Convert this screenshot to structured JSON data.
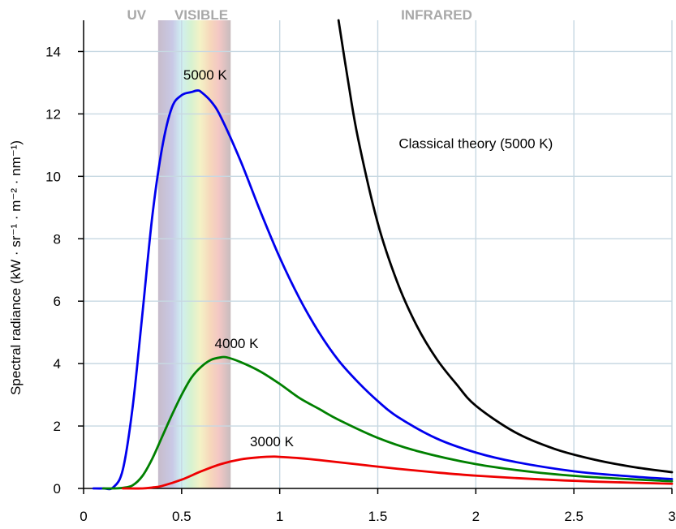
{
  "chart_data": {
    "type": "line",
    "title": "",
    "xlabel": "",
    "ylabel": "Spectral radiance (kW · sr⁻¹ · m⁻² · nm⁻¹)",
    "xlim": [
      0,
      3
    ],
    "ylim": [
      0,
      15
    ],
    "x_ticks": [
      "0",
      "0.5",
      "1",
      "1.5",
      "2",
      "2.5",
      "3"
    ],
    "y_ticks": [
      "0",
      "2",
      "4",
      "6",
      "8",
      "10",
      "12",
      "14"
    ],
    "grid": true,
    "regions": [
      {
        "label": "UV",
        "x_center": 0.27
      },
      {
        "label": "VISIBLE",
        "x_center": 0.6,
        "x_range": [
          0.38,
          0.75
        ]
      },
      {
        "label": "INFRARED",
        "x_center": 1.8
      }
    ],
    "series": [
      {
        "name": "5000 K",
        "color": "#0000ee",
        "x": [
          0.05,
          0.1,
          0.15,
          0.2,
          0.25,
          0.3,
          0.35,
          0.4,
          0.45,
          0.5,
          0.55,
          0.58,
          0.6,
          0.65,
          0.7,
          0.8,
          0.9,
          1.0,
          1.1,
          1.2,
          1.3,
          1.4,
          1.5,
          1.6,
          1.8,
          2.0,
          2.2,
          2.5,
          2.8,
          3.0
        ],
        "y": [
          0.0,
          0.0,
          0.03,
          0.6,
          2.6,
          5.6,
          8.7,
          10.9,
          12.2,
          12.6,
          12.7,
          12.75,
          12.7,
          12.4,
          11.9,
          10.5,
          8.9,
          7.4,
          6.1,
          5.0,
          4.1,
          3.4,
          2.8,
          2.3,
          1.6,
          1.15,
          0.85,
          0.55,
          0.38,
          0.3
        ]
      },
      {
        "name": "4000 K",
        "color": "#008000",
        "x": [
          0.1,
          0.15,
          0.2,
          0.25,
          0.3,
          0.35,
          0.4,
          0.45,
          0.5,
          0.55,
          0.6,
          0.65,
          0.7,
          0.73,
          0.8,
          0.9,
          1.0,
          1.1,
          1.2,
          1.3,
          1.5,
          1.7,
          2.0,
          2.3,
          2.6,
          3.0
        ],
        "y": [
          0.0,
          0.0,
          0.02,
          0.1,
          0.4,
          0.95,
          1.65,
          2.35,
          3.0,
          3.55,
          3.9,
          4.12,
          4.2,
          4.2,
          4.05,
          3.75,
          3.35,
          2.9,
          2.55,
          2.2,
          1.62,
          1.2,
          0.78,
          0.52,
          0.36,
          0.23
        ]
      },
      {
        "name": "3000 K",
        "color": "#ee0000",
        "x": [
          0.2,
          0.3,
          0.35,
          0.4,
          0.5,
          0.6,
          0.7,
          0.8,
          0.9,
          0.97,
          1.0,
          1.1,
          1.2,
          1.4,
          1.6,
          1.8,
          2.0,
          2.3,
          2.6,
          3.0
        ],
        "y": [
          0.0,
          0.0,
          0.03,
          0.08,
          0.28,
          0.55,
          0.78,
          0.93,
          1.0,
          1.02,
          1.01,
          0.97,
          0.91,
          0.77,
          0.63,
          0.51,
          0.41,
          0.3,
          0.22,
          0.15
        ]
      },
      {
        "name": "Classical theory (5000 K)",
        "color": "#000000",
        "x": [
          1.3,
          1.35,
          1.4,
          1.5,
          1.6,
          1.7,
          1.8,
          1.9,
          2.0,
          2.2,
          2.4,
          2.6,
          2.8,
          3.0
        ],
        "y": [
          15.0,
          13.0,
          11.2,
          8.5,
          6.6,
          5.2,
          4.15,
          3.35,
          2.65,
          1.8,
          1.27,
          0.93,
          0.69,
          0.52
        ]
      }
    ],
    "annotations": [
      {
        "text": "5000 K",
        "x": 0.62,
        "y": 13.1
      },
      {
        "text": "4000 K",
        "x": 0.78,
        "y": 4.5
      },
      {
        "text": "3000 K",
        "x": 0.96,
        "y": 1.35
      },
      {
        "text": "Classical theory (5000 K)",
        "x": 2.0,
        "y": 10.9
      }
    ]
  }
}
